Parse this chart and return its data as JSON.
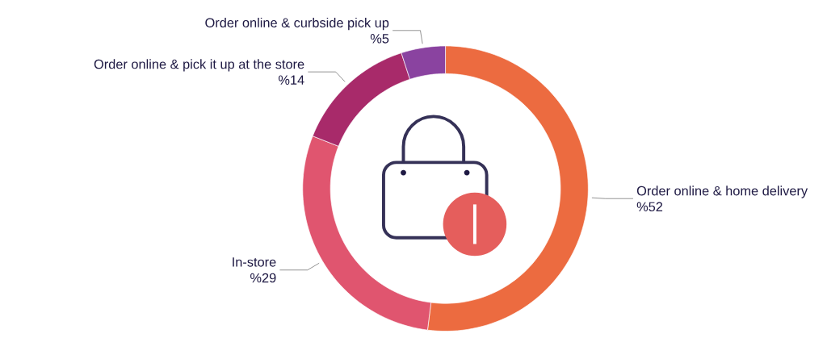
{
  "chart_data": {
    "type": "donut",
    "categories": [
      "Order online & home delivery",
      "In-store",
      "Order online & pick it up at the store",
      "Order online & curbside pick up"
    ],
    "values": [
      52,
      29,
      14,
      5
    ],
    "colors": [
      "#ec6b40",
      "#e0556f",
      "#a82a6a",
      "#8a43a0"
    ],
    "value_labels": [
      "%52",
      "%29",
      "%14",
      "%5"
    ]
  }
}
